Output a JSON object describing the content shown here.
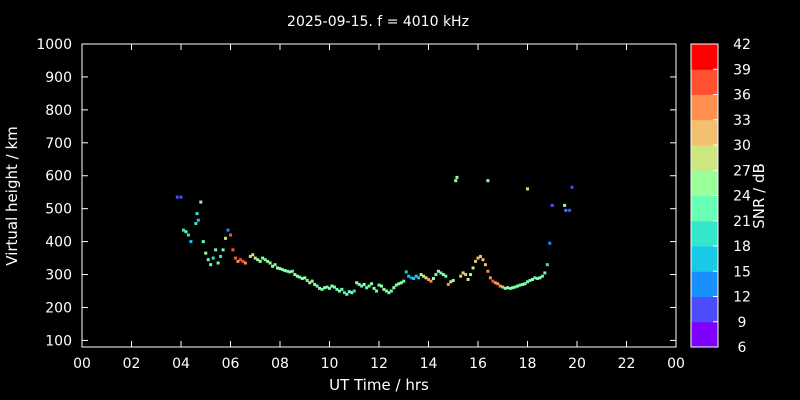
{
  "chart_data": {
    "type": "scatter",
    "title": "2025-09-15. f = 4010 kHz",
    "xlabel": "UT Time / hrs",
    "ylabel": "Virtual height / km",
    "xlim": [
      0,
      24
    ],
    "ylim": [
      80,
      1000
    ],
    "x_ticks": [
      "00",
      "02",
      "04",
      "06",
      "08",
      "10",
      "12",
      "14",
      "16",
      "18",
      "20",
      "22",
      "00"
    ],
    "y_ticks": [
      100,
      200,
      300,
      400,
      500,
      600,
      700,
      800,
      900,
      1000
    ],
    "grid": false,
    "colorbar": {
      "label": "SNR / dB",
      "min": 6,
      "max": 42,
      "ticks": [
        6,
        9,
        12,
        15,
        18,
        21,
        24,
        27,
        30,
        33,
        36,
        39,
        42
      ],
      "colors": [
        "#7f00ff",
        "#4d4dfc",
        "#1a8fff",
        "#19c9e8",
        "#33e6cc",
        "#66ffb3",
        "#99ff99",
        "#cce680",
        "#f2c070",
        "#ff9050",
        "#ff5030",
        "#ff0000"
      ]
    },
    "points": [
      [
        3.85,
        535,
        10
      ],
      [
        4.0,
        535,
        10
      ],
      [
        4.1,
        435,
        20
      ],
      [
        4.2,
        430,
        21
      ],
      [
        4.3,
        420,
        20
      ],
      [
        4.4,
        400,
        17
      ],
      [
        4.6,
        455,
        19
      ],
      [
        4.65,
        485,
        18
      ],
      [
        4.7,
        465,
        17
      ],
      [
        4.8,
        520,
        26
      ],
      [
        4.9,
        400,
        22
      ],
      [
        5.0,
        365,
        24
      ],
      [
        5.1,
        345,
        23
      ],
      [
        5.2,
        330,
        22
      ],
      [
        5.3,
        350,
        20
      ],
      [
        5.4,
        375,
        21
      ],
      [
        5.5,
        335,
        22
      ],
      [
        5.6,
        355,
        20
      ],
      [
        5.7,
        375,
        23
      ],
      [
        5.8,
        410,
        29
      ],
      [
        5.9,
        435,
        12
      ],
      [
        6.0,
        420,
        37
      ],
      [
        6.1,
        375,
        36
      ],
      [
        6.2,
        350,
        38
      ],
      [
        6.3,
        340,
        35
      ],
      [
        6.4,
        345,
        37
      ],
      [
        6.5,
        340,
        38
      ],
      [
        6.6,
        335,
        34
      ],
      [
        6.8,
        355,
        30
      ],
      [
        6.9,
        360,
        28
      ],
      [
        7.0,
        350,
        28
      ],
      [
        7.1,
        345,
        25
      ],
      [
        7.2,
        340,
        24
      ],
      [
        7.3,
        350,
        25
      ],
      [
        7.4,
        345,
        23
      ],
      [
        7.5,
        340,
        25
      ],
      [
        7.6,
        335,
        24
      ],
      [
        7.7,
        325,
        24
      ],
      [
        7.8,
        330,
        23
      ],
      [
        7.9,
        320,
        25
      ],
      [
        8.0,
        318,
        24
      ],
      [
        8.1,
        315,
        23
      ],
      [
        8.2,
        312,
        24
      ],
      [
        8.3,
        310,
        22
      ],
      [
        8.4,
        308,
        24
      ],
      [
        8.5,
        310,
        23
      ],
      [
        8.6,
        300,
        25
      ],
      [
        8.7,
        295,
        24
      ],
      [
        8.8,
        292,
        22
      ],
      [
        8.9,
        288,
        25
      ],
      [
        9.0,
        290,
        24
      ],
      [
        9.1,
        282,
        23
      ],
      [
        9.2,
        275,
        28
      ],
      [
        9.3,
        280,
        24
      ],
      [
        9.4,
        270,
        25
      ],
      [
        9.5,
        265,
        23
      ],
      [
        9.6,
        258,
        24
      ],
      [
        9.7,
        255,
        23
      ],
      [
        9.8,
        260,
        24
      ],
      [
        9.9,
        262,
        22
      ],
      [
        10.0,
        258,
        23
      ],
      [
        10.1,
        265,
        24
      ],
      [
        10.2,
        262,
        23
      ],
      [
        10.3,
        255,
        22
      ],
      [
        10.4,
        250,
        24
      ],
      [
        10.5,
        255,
        21
      ],
      [
        10.6,
        245,
        20
      ],
      [
        10.7,
        240,
        23
      ],
      [
        10.8,
        248,
        21
      ],
      [
        10.9,
        245,
        22
      ],
      [
        11.0,
        250,
        20
      ],
      [
        11.1,
        275,
        24
      ],
      [
        11.2,
        270,
        23
      ],
      [
        11.3,
        265,
        22
      ],
      [
        11.4,
        270,
        24
      ],
      [
        11.5,
        260,
        21
      ],
      [
        11.6,
        265,
        23
      ],
      [
        11.7,
        272,
        25
      ],
      [
        11.8,
        258,
        24
      ],
      [
        11.9,
        250,
        23
      ],
      [
        12.0,
        268,
        22
      ],
      [
        12.1,
        265,
        25
      ],
      [
        12.2,
        255,
        24
      ],
      [
        12.3,
        250,
        21
      ],
      [
        12.4,
        245,
        23
      ],
      [
        12.5,
        250,
        22
      ],
      [
        12.6,
        260,
        24
      ],
      [
        12.7,
        268,
        23
      ],
      [
        12.8,
        272,
        25
      ],
      [
        12.9,
        275,
        24
      ],
      [
        13.0,
        280,
        22
      ],
      [
        13.1,
        308,
        15
      ],
      [
        13.2,
        295,
        16
      ],
      [
        13.3,
        290,
        14
      ],
      [
        13.4,
        288,
        17
      ],
      [
        13.5,
        295,
        15
      ],
      [
        13.6,
        290,
        16
      ],
      [
        13.7,
        300,
        24
      ],
      [
        13.8,
        295,
        28
      ],
      [
        13.9,
        290,
        27
      ],
      [
        14.0,
        285,
        35
      ],
      [
        14.1,
        280,
        34
      ],
      [
        14.2,
        288,
        25
      ],
      [
        14.3,
        300,
        23
      ],
      [
        14.4,
        310,
        24
      ],
      [
        14.5,
        305,
        22
      ],
      [
        14.6,
        300,
        25
      ],
      [
        14.7,
        295,
        23
      ],
      [
        14.8,
        270,
        34
      ],
      [
        14.9,
        278,
        27
      ],
      [
        15.0,
        282,
        24
      ],
      [
        15.1,
        585,
        24
      ],
      [
        15.15,
        595,
        25
      ],
      [
        15.3,
        295,
        30
      ],
      [
        15.4,
        305,
        28
      ],
      [
        15.5,
        300,
        32
      ],
      [
        15.6,
        285,
        28
      ],
      [
        15.7,
        300,
        25
      ],
      [
        15.8,
        320,
        29
      ],
      [
        15.9,
        340,
        30
      ],
      [
        16.0,
        350,
        31
      ],
      [
        16.1,
        355,
        30
      ],
      [
        16.2,
        345,
        32
      ],
      [
        16.3,
        330,
        31
      ],
      [
        16.4,
        310,
        33
      ],
      [
        16.5,
        290,
        35
      ],
      [
        16.6,
        280,
        36
      ],
      [
        16.7,
        275,
        35
      ],
      [
        16.8,
        272,
        34
      ],
      [
        16.9,
        265,
        33
      ],
      [
        17.0,
        262,
        30
      ],
      [
        17.1,
        258,
        23
      ],
      [
        17.2,
        260,
        24
      ],
      [
        17.3,
        258,
        23
      ],
      [
        17.4,
        260,
        24
      ],
      [
        17.5,
        262,
        22
      ],
      [
        17.6,
        265,
        24
      ],
      [
        17.7,
        268,
        23
      ],
      [
        17.8,
        270,
        22
      ],
      [
        17.9,
        272,
        24
      ],
      [
        18.0,
        278,
        23
      ],
      [
        18.1,
        282,
        22
      ],
      [
        18.2,
        285,
        24
      ],
      [
        18.3,
        290,
        23
      ],
      [
        18.4,
        288,
        22
      ],
      [
        18.5,
        290,
        24
      ],
      [
        18.6,
        295,
        21
      ],
      [
        18.7,
        305,
        22
      ],
      [
        18.8,
        330,
        20
      ],
      [
        18.9,
        395,
        12
      ],
      [
        19.0,
        510,
        11
      ],
      [
        16.4,
        585,
        24
      ],
      [
        18.0,
        560,
        27
      ],
      [
        19.5,
        510,
        24
      ],
      [
        19.55,
        495,
        12
      ],
      [
        19.7,
        495,
        11
      ],
      [
        19.8,
        565,
        11
      ]
    ]
  }
}
